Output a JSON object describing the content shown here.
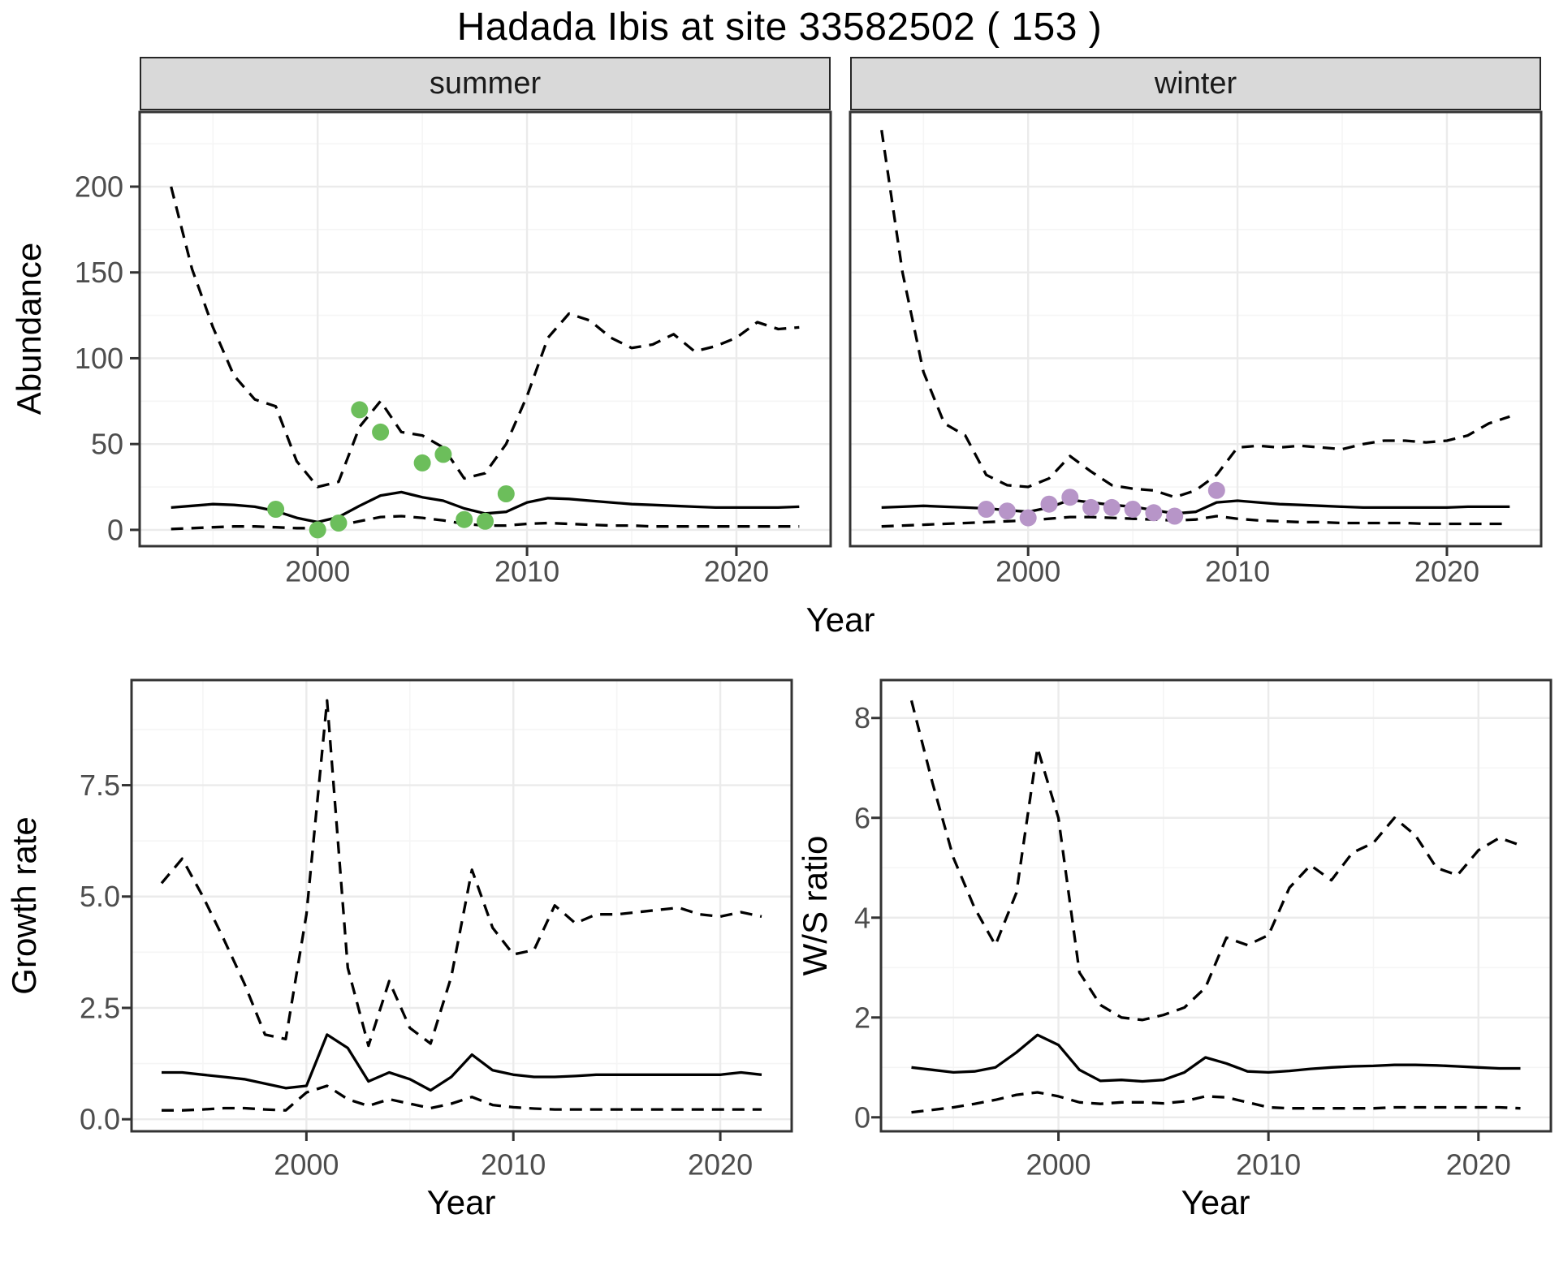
{
  "title": "Hadada Ibis at site 33582502 ( 153 )",
  "colors": {
    "summer_points": "#6CBE5B",
    "winter_points": "#B795C8",
    "line": "#000000",
    "strip_bg": "#D9D9D9",
    "strip_border": "#262626",
    "panel_border": "#333333",
    "grid_major": "#EBEBEB",
    "grid_minor": "#F5F5F5",
    "tick_text": "#4D4D4D",
    "title_text": "#000000"
  },
  "chart_data": [
    {
      "id": "abundance-summer",
      "type": "line",
      "facet": "summer",
      "xlabel": "Year",
      "ylabel": "Abundance",
      "xlim": [
        1991.5,
        2024.5
      ],
      "ylim": [
        -9.5,
        243.5
      ],
      "xticks": [
        2000,
        2010,
        2020
      ],
      "xtick_labels": [
        "2000",
        "2010",
        "2020"
      ],
      "xminor": [
        1995,
        2005,
        2015
      ],
      "yticks": [
        0,
        50,
        100,
        150,
        200
      ],
      "ytick_labels": [
        "0",
        "50",
        "100",
        "150",
        "200"
      ],
      "yminor": [
        25,
        75,
        125,
        175,
        225
      ],
      "grid": true,
      "legend": false,
      "x": [
        1993,
        1994,
        1995,
        1996,
        1997,
        1998,
        1999,
        2000,
        2001,
        2002,
        2003,
        2004,
        2005,
        2006,
        2007,
        2008,
        2009,
        2010,
        2011,
        2012,
        2013,
        2014,
        2015,
        2016,
        2017,
        2018,
        2019,
        2020,
        2021,
        2022,
        2023
      ],
      "series": [
        {
          "name": "upper-95ci",
          "style": "dashed",
          "values": [
            200,
            152,
            118,
            90,
            76,
            72,
            40,
            25,
            28,
            60,
            75,
            57,
            55,
            48,
            30,
            33,
            50,
            78,
            112,
            126,
            122,
            112,
            106,
            108,
            114,
            104,
            107,
            112,
            121,
            117,
            118
          ]
        },
        {
          "name": "median",
          "style": "solid",
          "values": [
            13,
            14,
            15,
            14.5,
            13.5,
            11,
            7,
            4.5,
            7.5,
            14,
            20,
            22,
            19,
            17,
            12.5,
            9.5,
            10.5,
            16,
            18.5,
            18,
            17,
            16,
            15,
            14.5,
            14,
            13.5,
            13,
            13,
            13,
            13,
            13.5
          ]
        },
        {
          "name": "lower-95ci",
          "style": "dashed",
          "values": [
            0.5,
            1,
            1.5,
            2,
            2,
            1.5,
            1,
            1,
            2.5,
            5,
            7.5,
            8,
            7,
            5.5,
            3.5,
            2.5,
            2.5,
            3.5,
            4,
            3.5,
            3,
            2.5,
            2.5,
            2,
            2,
            2,
            2,
            2,
            2,
            2,
            2
          ]
        }
      ],
      "points": {
        "name": "observed-count",
        "color": "#6CBE5B",
        "data": [
          [
            1998,
            12
          ],
          [
            2000,
            0
          ],
          [
            2001,
            4
          ],
          [
            2002,
            70
          ],
          [
            2003,
            57
          ],
          [
            2005,
            39
          ],
          [
            2006,
            44
          ],
          [
            2007,
            6
          ],
          [
            2008,
            5
          ],
          [
            2009,
            21
          ]
        ]
      }
    },
    {
      "id": "abundance-winter",
      "type": "line",
      "facet": "winter",
      "xlabel": "Year",
      "ylabel": "Abundance",
      "xlim": [
        1991.5,
        2024.5
      ],
      "ylim": [
        -9.5,
        243.5
      ],
      "xticks": [
        2000,
        2010,
        2020
      ],
      "xtick_labels": [
        "2000",
        "2010",
        "2020"
      ],
      "xminor": [
        1995,
        2005,
        2015
      ],
      "yticks": [
        0,
        50,
        100,
        150,
        200
      ],
      "ytick_labels": [
        "0",
        "50",
        "100",
        "150",
        "200"
      ],
      "yminor": [
        25,
        75,
        125,
        175,
        225
      ],
      "grid": true,
      "legend": false,
      "x": [
        1993,
        1994,
        1995,
        1996,
        1997,
        1998,
        1999,
        2000,
        2001,
        2002,
        2003,
        2004,
        2005,
        2006,
        2007,
        2008,
        2009,
        2010,
        2011,
        2012,
        2013,
        2014,
        2015,
        2016,
        2017,
        2018,
        2019,
        2020,
        2021,
        2022,
        2023
      ],
      "series": [
        {
          "name": "upper-95ci",
          "style": "dashed",
          "values": [
            233,
            150,
            92,
            62,
            55,
            32,
            26,
            25,
            30,
            43,
            34,
            26,
            24,
            23,
            19,
            23,
            32,
            48,
            49,
            48,
            49,
            48,
            47,
            50,
            52,
            52,
            51,
            52,
            55,
            62,
            66
          ]
        },
        {
          "name": "median",
          "style": "solid",
          "values": [
            13,
            13.5,
            14,
            13.5,
            13,
            12.5,
            11.5,
            10.5,
            13,
            17.5,
            16,
            14.5,
            13.5,
            11.5,
            9.5,
            10.5,
            16,
            17,
            16,
            15,
            14.5,
            14,
            13.5,
            13,
            13,
            13,
            13,
            13,
            13.5,
            13.5,
            13.5
          ]
        },
        {
          "name": "lower-95ci",
          "style": "dashed",
          "values": [
            2,
            2.5,
            3,
            3.5,
            4,
            4.5,
            5,
            5.5,
            6.5,
            7.5,
            7.5,
            7,
            6.5,
            6,
            5.5,
            6,
            8,
            6.5,
            5.5,
            5,
            4.5,
            4.5,
            4,
            4,
            4,
            4,
            3.5,
            3.5,
            3.5,
            3.5,
            3.5
          ]
        }
      ],
      "points": {
        "name": "observed-count",
        "color": "#B795C8",
        "data": [
          [
            1998,
            12
          ],
          [
            1999,
            11
          ],
          [
            2000,
            7
          ],
          [
            2001,
            15
          ],
          [
            2002,
            19
          ],
          [
            2003,
            13
          ],
          [
            2004,
            13
          ],
          [
            2005,
            12
          ],
          [
            2006,
            10
          ],
          [
            2007,
            8
          ],
          [
            2009,
            23
          ]
        ]
      }
    },
    {
      "id": "growth-rate",
      "type": "line",
      "facet": null,
      "xlabel": "Year",
      "ylabel": "Growth rate",
      "xlim": [
        1991.55,
        2023.45
      ],
      "ylim": [
        -0.27,
        9.86
      ],
      "xticks": [
        2000,
        2010,
        2020
      ],
      "xtick_labels": [
        "2000",
        "2010",
        "2020"
      ],
      "xminor": [
        1995,
        2005,
        2015
      ],
      "yticks": [
        0,
        2.5,
        5,
        7.5
      ],
      "ytick_labels": [
        "0.0",
        "2.5",
        "5.0",
        "7.5"
      ],
      "yminor": [
        1.25,
        3.75,
        6.25,
        8.75
      ],
      "grid": true,
      "legend": false,
      "x": [
        1993,
        1994,
        1995,
        1996,
        1997,
        1998,
        1999,
        2000,
        2001,
        2002,
        2003,
        2004,
        2005,
        2006,
        2007,
        2008,
        2009,
        2010,
        2011,
        2012,
        2013,
        2014,
        2015,
        2016,
        2017,
        2018,
        2019,
        2020,
        2021,
        2022
      ],
      "series": [
        {
          "name": "upper-95ci",
          "style": "dashed",
          "values": [
            5.3,
            5.85,
            5.0,
            4.05,
            3.05,
            1.9,
            1.8,
            4.6,
            9.4,
            3.4,
            1.65,
            3.1,
            2.05,
            1.7,
            3.2,
            5.6,
            4.3,
            3.7,
            3.8,
            4.8,
            4.4,
            4.6,
            4.6,
            4.65,
            4.7,
            4.75,
            4.6,
            4.55,
            4.65,
            4.55
          ]
        },
        {
          "name": "median",
          "style": "solid",
          "values": [
            1.05,
            1.05,
            1.0,
            0.95,
            0.9,
            0.8,
            0.7,
            0.75,
            1.9,
            1.6,
            0.85,
            1.05,
            0.9,
            0.65,
            0.95,
            1.45,
            1.1,
            1.0,
            0.95,
            0.95,
            0.97,
            1.0,
            1.0,
            1.0,
            1.0,
            1.0,
            1.0,
            1.0,
            1.05,
            1.0
          ]
        },
        {
          "name": "lower-95ci",
          "style": "dashed",
          "values": [
            0.2,
            0.2,
            0.22,
            0.25,
            0.25,
            0.22,
            0.2,
            0.6,
            0.75,
            0.45,
            0.3,
            0.45,
            0.35,
            0.25,
            0.35,
            0.5,
            0.32,
            0.27,
            0.24,
            0.22,
            0.22,
            0.22,
            0.22,
            0.22,
            0.22,
            0.22,
            0.22,
            0.22,
            0.22,
            0.22
          ]
        }
      ],
      "points": null
    },
    {
      "id": "ws-ratio",
      "type": "line",
      "facet": null,
      "xlabel": "Year",
      "ylabel": "W/S ratio",
      "xlim": [
        1991.55,
        2023.45
      ],
      "ylim": [
        -0.28,
        8.76
      ],
      "xticks": [
        2000,
        2010,
        2020
      ],
      "xtick_labels": [
        "2000",
        "2010",
        "2020"
      ],
      "xminor": [
        1995,
        2005,
        2015
      ],
      "yticks": [
        0,
        2,
        4,
        6,
        8
      ],
      "ytick_labels": [
        "0",
        "2",
        "4",
        "6",
        "8"
      ],
      "yminor": [
        1,
        3,
        5,
        7
      ],
      "grid": true,
      "legend": false,
      "x": [
        1993,
        1994,
        1995,
        1996,
        1997,
        1998,
        1999,
        2000,
        2001,
        2002,
        2003,
        2004,
        2005,
        2006,
        2007,
        2008,
        2009,
        2010,
        2011,
        2012,
        2013,
        2014,
        2015,
        2016,
        2017,
        2018,
        2019,
        2020,
        2021,
        2022
      ],
      "series": [
        {
          "name": "upper-95ci",
          "style": "dashed",
          "values": [
            8.35,
            6.7,
            5.2,
            4.2,
            3.45,
            4.5,
            7.4,
            6.0,
            2.9,
            2.25,
            2.0,
            1.95,
            2.05,
            2.2,
            2.6,
            3.6,
            3.45,
            3.65,
            4.6,
            5.05,
            4.75,
            5.3,
            5.5,
            6.0,
            5.65,
            5.0,
            4.85,
            5.35,
            5.6,
            5.45
          ]
        },
        {
          "name": "median",
          "style": "solid",
          "values": [
            1.0,
            0.95,
            0.9,
            0.92,
            1.0,
            1.3,
            1.65,
            1.45,
            0.95,
            0.73,
            0.75,
            0.72,
            0.75,
            0.9,
            1.2,
            1.08,
            0.92,
            0.9,
            0.93,
            0.97,
            1.0,
            1.02,
            1.03,
            1.05,
            1.05,
            1.04,
            1.02,
            1.0,
            0.98,
            0.98
          ]
        },
        {
          "name": "lower-95ci",
          "style": "dashed",
          "values": [
            0.1,
            0.15,
            0.2,
            0.27,
            0.35,
            0.45,
            0.5,
            0.42,
            0.3,
            0.27,
            0.3,
            0.3,
            0.28,
            0.32,
            0.42,
            0.4,
            0.3,
            0.2,
            0.18,
            0.18,
            0.18,
            0.18,
            0.18,
            0.2,
            0.2,
            0.2,
            0.2,
            0.2,
            0.2,
            0.18
          ]
        }
      ],
      "points": null
    }
  ]
}
